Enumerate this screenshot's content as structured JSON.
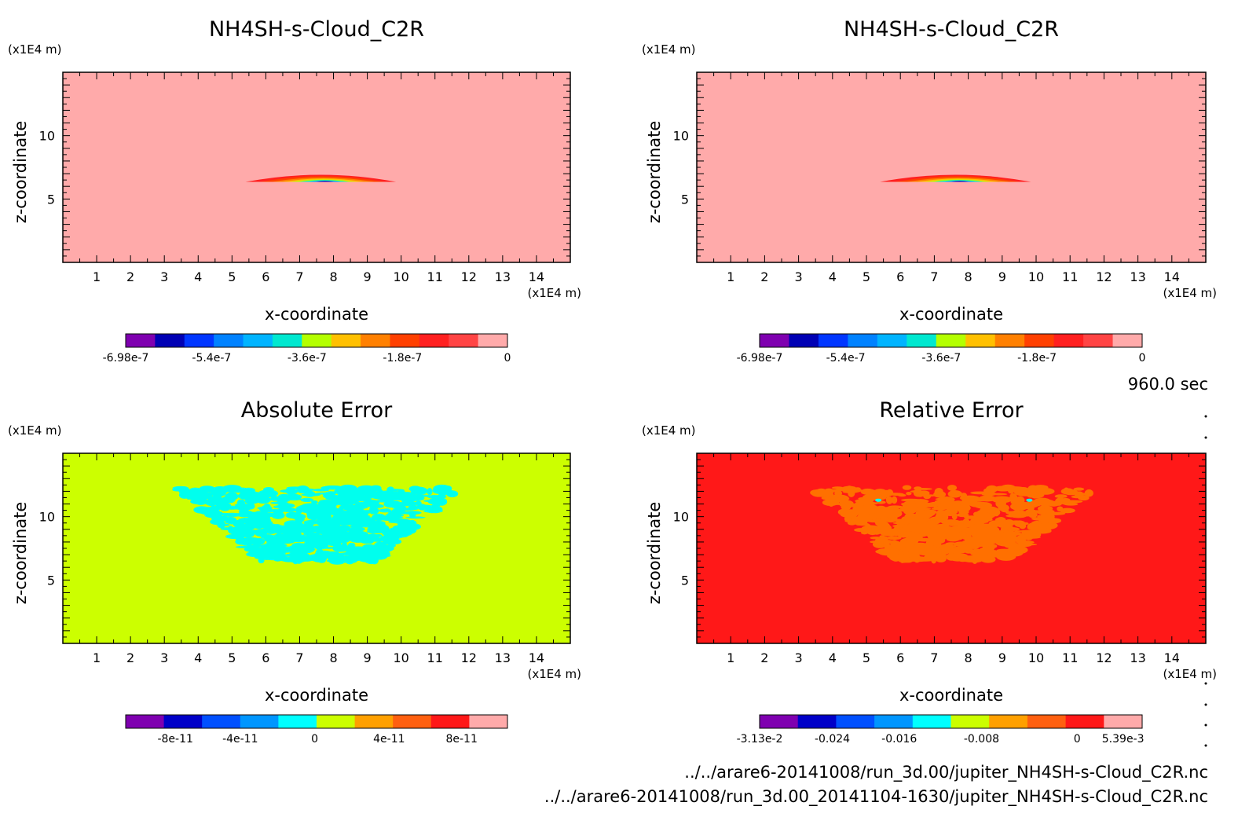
{
  "time_label": "960.0 sec",
  "files": [
    "../../arare6-20141008/run_3d.00/jupiter_NH4SH-s-Cloud_C2R.nc",
    "../../arare6-20141008/run_3d.00_20141104-1630/jupiter_NH4SH-s-Cloud_C2R.nc"
  ],
  "chart_data": [
    {
      "type": "heatmap",
      "title": "NH4SH-s-Cloud_C2R",
      "xlabel": "x-coordinate",
      "ylabel": "z-coordinate",
      "x_unit": "(x1E4 m)",
      "y_unit": "(x1E4 m)",
      "xlim": [
        0,
        15
      ],
      "ylim": [
        0,
        15
      ],
      "x_ticks": [
        "1",
        "2",
        "3",
        "4",
        "5",
        "6",
        "7",
        "8",
        "9",
        "10",
        "11",
        "12",
        "13",
        "14"
      ],
      "y_ticks": [
        "5",
        "10"
      ],
      "background_color": "#ffaaaa",
      "colorbar": {
        "colors": [
          "#7f00b0",
          "#0000b4",
          "#0036ff",
          "#0082ff",
          "#00b4ff",
          "#00e8d0",
          "#b4ff00",
          "#ffc000",
          "#ff8000",
          "#ff4000",
          "#ff2020",
          "#ff4444",
          "#ffaaaa"
        ],
        "labels": [
          "-6.98e-7",
          "-5.4e-7",
          "-3.6e-7",
          "-1.8e-7",
          "0"
        ],
        "range": [
          -6.98e-07,
          0
        ]
      }
    },
    {
      "type": "heatmap",
      "title": "NH4SH-s-Cloud_C2R",
      "xlabel": "x-coordinate",
      "ylabel": "z-coordinate",
      "x_unit": "(x1E4 m)",
      "y_unit": "(x1E4 m)",
      "xlim": [
        0,
        15
      ],
      "ylim": [
        0,
        15
      ],
      "x_ticks": [
        "1",
        "2",
        "3",
        "4",
        "5",
        "6",
        "7",
        "8",
        "9",
        "10",
        "11",
        "12",
        "13",
        "14"
      ],
      "y_ticks": [
        "5",
        "10"
      ],
      "background_color": "#ffaaaa",
      "colorbar": {
        "colors": [
          "#7f00b0",
          "#0000b4",
          "#0036ff",
          "#0082ff",
          "#00b4ff",
          "#00e8d0",
          "#b4ff00",
          "#ffc000",
          "#ff8000",
          "#ff4000",
          "#ff2020",
          "#ff4444",
          "#ffaaaa"
        ],
        "labels": [
          "-6.98e-7",
          "-5.4e-7",
          "-3.6e-7",
          "-1.8e-7",
          "0"
        ],
        "range": [
          -6.98e-07,
          0
        ]
      }
    },
    {
      "type": "heatmap",
      "title": "Absolute Error",
      "xlabel": "x-coordinate",
      "ylabel": "z-coordinate",
      "x_unit": "(x1E4 m)",
      "y_unit": "(x1E4 m)",
      "xlim": [
        0,
        15
      ],
      "ylim": [
        0,
        15
      ],
      "x_ticks": [
        "1",
        "2",
        "3",
        "4",
        "5",
        "6",
        "7",
        "8",
        "9",
        "10",
        "11",
        "12",
        "13",
        "14"
      ],
      "y_ticks": [
        "5",
        "10"
      ],
      "background_color": "#ccff00",
      "pattern_color": "#00ffee",
      "colorbar": {
        "colors": [
          "#7f00b0",
          "#0000c8",
          "#0050ff",
          "#0096ff",
          "#00ffff",
          "#ccff00",
          "#ffa000",
          "#ff6010",
          "#ff1818",
          "#ffaaaa"
        ],
        "labels": [
          "-8e-11",
          "-4e-11",
          "0",
          "4e-11",
          "8e-11"
        ],
        "range": [
          -1e-10,
          1e-10
        ]
      }
    },
    {
      "type": "heatmap",
      "title": "Relative Error",
      "xlabel": "x-coordinate",
      "ylabel": "z-coordinate",
      "x_unit": "(x1E4 m)",
      "y_unit": "(x1E4 m)",
      "xlim": [
        0,
        15
      ],
      "ylim": [
        0,
        15
      ],
      "x_ticks": [
        "1",
        "2",
        "3",
        "4",
        "5",
        "6",
        "7",
        "8",
        "9",
        "10",
        "11",
        "12",
        "13",
        "14"
      ],
      "y_ticks": [
        "5",
        "10"
      ],
      "background_color": "#ff1818",
      "pattern_color": "#ff7000",
      "colorbar": {
        "colors": [
          "#7f00b0",
          "#0000c8",
          "#0050ff",
          "#0096ff",
          "#00ffff",
          "#ccff00",
          "#ffa000",
          "#ff6010",
          "#ff1818",
          "#ffaaaa"
        ],
        "labels": [
          "-3.13e-2",
          "-0.024",
          "-0.016",
          "-0.008",
          "0",
          "5.39e-3"
        ],
        "range": [
          -0.0313,
          0.00539
        ]
      }
    }
  ]
}
